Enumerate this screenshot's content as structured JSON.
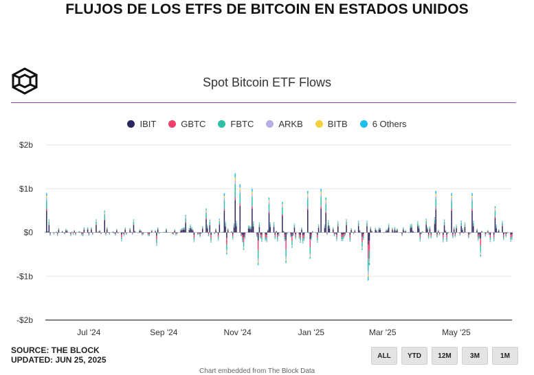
{
  "page": {
    "headline": "FLUJOS DE LOS ETFS DE BITCOIN EN ESTADOS UNIDOS",
    "chart_title": "Spot Bitcoin ETF Flows",
    "source_line": "SOURCE: THE BLOCK",
    "updated_line": "UPDATED: JUN 25, 2025",
    "range_buttons": [
      "ALL",
      "YTD",
      "12M",
      "3M",
      "1M"
    ],
    "credit": "Chart embedded from The Block Data"
  },
  "chart_data": {
    "type": "bar",
    "stacked": true,
    "title": "Spot Bitcoin ETF Flows",
    "y_tick_labels": [
      "$2b",
      "$1b",
      "$0",
      "-$1b",
      "-$2b"
    ],
    "y_ticks": [
      2,
      1,
      0,
      -1,
      -2
    ],
    "ylim": [
      -2,
      2
    ],
    "y_unit": "billions USD",
    "x_tick_labels": [
      "Jul '24",
      "Sep '24",
      "Nov '24",
      "Jan '25",
      "Mar '25",
      "May '25"
    ],
    "x_tick_dates": [
      "2024-07-01",
      "2024-09-01",
      "2024-11-01",
      "2025-01-01",
      "2025-03-01",
      "2025-05-01"
    ],
    "x_range": [
      "2024-06-03",
      "2025-06-24"
    ],
    "grid": true,
    "legend_position": "top-center",
    "series": [
      {
        "name": "IBIT",
        "color": "#2b2560"
      },
      {
        "name": "GBTC",
        "color": "#ee3f6d"
      },
      {
        "name": "FBTC",
        "color": "#2dbfa8"
      },
      {
        "name": "ARKB",
        "color": "#b7aee6"
      },
      {
        "name": "BITB",
        "color": "#f4d03f"
      },
      {
        "name": "6 Others",
        "color": "#1ec0ea"
      }
    ],
    "approximate_daily_net_flows": [
      {
        "date": "2024-06-04",
        "value": 0.9
      },
      {
        "date": "2024-06-06",
        "value": 0.3
      },
      {
        "date": "2024-07-15",
        "value": 0.3
      },
      {
        "date": "2024-07-22",
        "value": 0.5
      },
      {
        "date": "2024-08-05",
        "value": -0.2
      },
      {
        "date": "2024-08-15",
        "value": 0.3
      },
      {
        "date": "2024-09-03",
        "value": -0.3
      },
      {
        "date": "2024-09-27",
        "value": 0.4
      },
      {
        "date": "2024-10-14",
        "value": 0.55
      },
      {
        "date": "2024-10-29",
        "value": 0.9
      },
      {
        "date": "2024-10-31",
        "value": -0.5
      },
      {
        "date": "2024-11-07",
        "value": 1.35
      },
      {
        "date": "2024-11-11",
        "value": 1.1
      },
      {
        "date": "2024-11-14",
        "value": -0.4
      },
      {
        "date": "2024-11-21",
        "value": 1.0
      },
      {
        "date": "2024-11-26",
        "value": -0.75
      },
      {
        "date": "2024-12-05",
        "value": 0.8
      },
      {
        "date": "2024-12-16",
        "value": 0.7
      },
      {
        "date": "2024-12-19",
        "value": -0.7
      },
      {
        "date": "2024-12-24",
        "value": -0.35
      },
      {
        "date": "2025-01-02",
        "value": -0.25
      },
      {
        "date": "2025-01-06",
        "value": 0.95
      },
      {
        "date": "2025-01-08",
        "value": -0.6
      },
      {
        "date": "2025-01-17",
        "value": 1.0
      },
      {
        "date": "2025-01-21",
        "value": 0.8
      },
      {
        "date": "2025-02-07",
        "value": 0.3
      },
      {
        "date": "2025-02-20",
        "value": -0.4
      },
      {
        "date": "2025-02-25",
        "value": -1.1
      },
      {
        "date": "2025-02-26",
        "value": -0.75
      },
      {
        "date": "2025-03-14",
        "value": 0.2
      },
      {
        "date": "2025-04-21",
        "value": 0.35
      },
      {
        "date": "2025-04-22",
        "value": 0.95
      },
      {
        "date": "2025-05-05",
        "value": 0.9
      },
      {
        "date": "2025-05-22",
        "value": 0.9
      },
      {
        "date": "2025-05-29",
        "value": -0.55
      },
      {
        "date": "2025-06-10",
        "value": 0.6
      }
    ]
  }
}
